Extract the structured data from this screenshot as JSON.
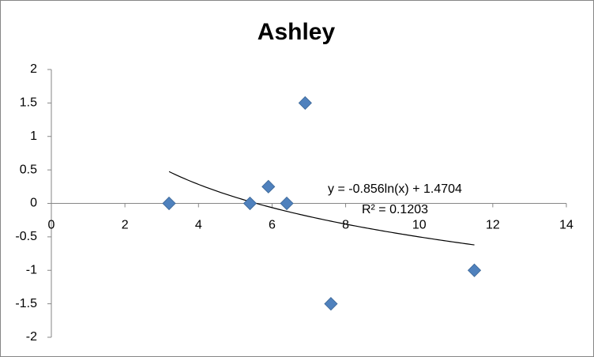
{
  "chart_data": {
    "type": "scatter",
    "title": "Ashley",
    "series": [
      {
        "color": "#4f81bd",
        "x": [
          3.2,
          5.4,
          5.9,
          6.4,
          6.9,
          7.6,
          11.5
        ],
        "values": [
          0,
          0,
          0.25,
          0,
          1.5,
          -1.5,
          -1
        ]
      }
    ],
    "xlim": [
      0,
      14
    ],
    "xticks": [
      0,
      2,
      4,
      6,
      8,
      10,
      12,
      14
    ],
    "ylim": [
      -2,
      2
    ],
    "yticks": [
      -2,
      -1.5,
      -1,
      -0.5,
      0,
      0.5,
      1,
      1.5,
      2
    ],
    "grid": false,
    "trendline": {
      "type": "log",
      "equation": "y = -0.856ln(x) + 1.4704",
      "r_squared": "R² = 0.1203",
      "coefficients": [
        -0.856,
        1.4704
      ]
    }
  }
}
